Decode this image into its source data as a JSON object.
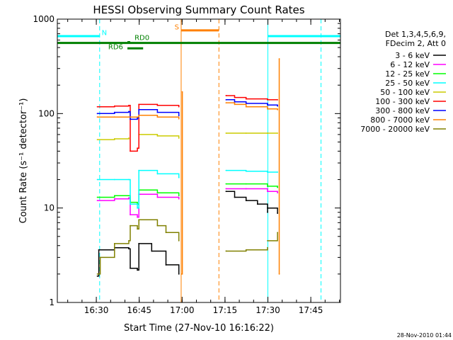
{
  "chart_data": {
    "type": "line",
    "title": "HESSI Observing Summary Count Rates",
    "xlabel": "Start Time (27-Nov-10 16:16:22)",
    "ylabel": "Count Rate (s⁻¹ detector⁻¹)",
    "x_unit": "minutes after 16:16:22",
    "xlim": [
      0,
      99
    ],
    "ylim": [
      1,
      1000
    ],
    "yscale": "log",
    "xtick_labels": [
      {
        "x": 13.63,
        "label": "16:30"
      },
      {
        "x": 28.63,
        "label": "16:45"
      },
      {
        "x": 43.63,
        "label": "17:00"
      },
      {
        "x": 58.63,
        "label": "17:15"
      },
      {
        "x": 73.63,
        "label": "17:30"
      },
      {
        "x": 88.63,
        "label": "17:45"
      }
    ],
    "ytick_labels": [
      {
        "y": 1,
        "label": "1"
      },
      {
        "y": 10,
        "label": "10"
      },
      {
        "y": 100,
        "label": "100"
      },
      {
        "y": 1000,
        "label": "1000"
      }
    ],
    "legend": {
      "placement": "right",
      "header": [
        "Det 1,3,4,5,6,9,",
        "FDecim 2, Att 0"
      ],
      "entries": [
        {
          "label": "3 - 6 keV",
          "color": "#000000"
        },
        {
          "label": "6 - 12 keV",
          "color": "#ff00ff"
        },
        {
          "label": "12 - 25 keV",
          "color": "#00ff00"
        },
        {
          "label": "25 - 50 keV",
          "color": "#00ffff"
        },
        {
          "label": "50 - 100 keV",
          "color": "#cccc00"
        },
        {
          "label": "100 - 300 keV",
          "color": "#ff0000"
        },
        {
          "label": "300 - 800 keV",
          "color": "#0000ff"
        },
        {
          "label": "800 - 7000 keV",
          "color": "#ff8000"
        },
        {
          "label": "7000 - 20000 keV",
          "color": "#808000"
        }
      ]
    },
    "series": [
      {
        "name": "3 - 6 keV",
        "color": "#000000",
        "segments": [
          [
            [
              14.0,
              1.9
            ],
            [
              14.5,
              3.6
            ],
            [
              20.0,
              3.8
            ],
            [
              25.0,
              3.7
            ],
            [
              25.5,
              2.3
            ],
            [
              28.0,
              2.2
            ],
            [
              28.5,
              4.2
            ],
            [
              33.0,
              3.5
            ],
            [
              38.0,
              2.5
            ],
            [
              42.5,
              2.0
            ]
          ],
          [
            [
              59.0,
              15.0
            ],
            [
              62.0,
              13.0
            ],
            [
              66.0,
              12.0
            ],
            [
              70.0,
              11.0
            ],
            [
              73.5,
              9.0
            ]
          ],
          [
            [
              73.5,
              10.0
            ],
            [
              77.0,
              8.8
            ]
          ]
        ]
      },
      {
        "name": "6 - 12 keV",
        "color": "#ff00ff",
        "segments": [
          [
            [
              14.0,
              12.0
            ],
            [
              20.0,
              12.5
            ],
            [
              25.0,
              12.8
            ],
            [
              25.5,
              8.5
            ],
            [
              28.0,
              8.0
            ],
            [
              28.5,
              14.0
            ],
            [
              35.0,
              13.0
            ],
            [
              42.5,
              12.5
            ]
          ],
          [
            [
              59.0,
              16.0
            ],
            [
              66.0,
              16.0
            ],
            [
              73.5,
              15.0
            ]
          ],
          [
            [
              73.5,
              15.0
            ],
            [
              77.0,
              14.5
            ]
          ]
        ]
      },
      {
        "name": "12 - 25 keV",
        "color": "#00ff00",
        "segments": [
          [
            [
              14.0,
              13.0
            ],
            [
              20.0,
              13.5
            ],
            [
              25.0,
              13.5
            ],
            [
              25.5,
              11.5
            ],
            [
              28.0,
              11.0
            ],
            [
              28.5,
              15.5
            ],
            [
              35.0,
              14.5
            ],
            [
              42.5,
              13.5
            ]
          ],
          [
            [
              59.0,
              18.0
            ],
            [
              66.0,
              18.0
            ],
            [
              73.5,
              17.0
            ]
          ],
          [
            [
              73.5,
              17.0
            ],
            [
              77.0,
              16.5
            ]
          ]
        ]
      },
      {
        "name": "25 - 50 keV",
        "color": "#00ffff",
        "segments": [
          [
            [
              14.0,
              20.0
            ],
            [
              20.0,
              20.0
            ],
            [
              25.0,
              20.0
            ],
            [
              25.5,
              11.0
            ],
            [
              28.0,
              10.0
            ],
            [
              28.5,
              25.0
            ],
            [
              35.0,
              23.0
            ],
            [
              42.5,
              21.0
            ]
          ],
          [
            [
              59.0,
              25.0
            ],
            [
              66.0,
              24.5
            ],
            [
              73.5,
              24.0
            ]
          ],
          [
            [
              73.5,
              24.0
            ],
            [
              77.0,
              24.0
            ]
          ]
        ]
      },
      {
        "name": "50 - 100 keV",
        "color": "#cccc00",
        "segments": [
          [
            [
              14.0,
              53.0
            ],
            [
              20.0,
              54.0
            ],
            [
              25.0,
              55.0
            ]
          ],
          [
            [
              28.5,
              60.0
            ],
            [
              35.0,
              58.0
            ],
            [
              42.5,
              55.0
            ]
          ],
          [
            [
              59.0,
              62.0
            ],
            [
              66.0,
              62.0
            ],
            [
              73.5,
              62.0
            ]
          ],
          [
            [
              73.5,
              62.0
            ],
            [
              77.0,
              62.0
            ]
          ]
        ]
      },
      {
        "name": "100 - 300 keV",
        "color": "#ff0000",
        "segments": [
          [
            [
              14.0,
              118.0
            ],
            [
              20.0,
              120.0
            ],
            [
              25.0,
              122.0
            ],
            [
              25.5,
              40.0
            ],
            [
              28.0,
              43.0
            ],
            [
              28.5,
              125.0
            ],
            [
              35.0,
              122.0
            ],
            [
              42.5,
              118.0
            ]
          ],
          [
            [
              59.0,
              155.0
            ],
            [
              62.0,
              148.0
            ],
            [
              66.0,
              143.0
            ],
            [
              73.5,
              140.0
            ]
          ],
          [
            [
              73.5,
              140.0
            ],
            [
              77.0,
              140.0
            ]
          ]
        ]
      },
      {
        "name": "300 - 800 keV",
        "color": "#0000ff",
        "segments": [
          [
            [
              14.0,
              100.0
            ],
            [
              20.0,
              103.0
            ],
            [
              25.0,
              105.0
            ],
            [
              25.5,
              87.0
            ],
            [
              28.0,
              90.0
            ],
            [
              28.5,
              110.0
            ],
            [
              35.0,
              103.0
            ],
            [
              42.5,
              95.0
            ]
          ],
          [
            [
              59.0,
              140.0
            ],
            [
              62.0,
              133.0
            ],
            [
              66.0,
              128.0
            ],
            [
              73.5,
              125.0
            ]
          ],
          [
            [
              73.5,
              123.0
            ],
            [
              77.0,
              120.0
            ]
          ]
        ]
      },
      {
        "name": "800 - 7000 keV",
        "color": "#ff8000",
        "segments": [
          [
            [
              14.0,
              92.0
            ],
            [
              20.0,
              92.0
            ],
            [
              25.0,
              92.0
            ],
            [
              28.5,
              96.0
            ],
            [
              35.0,
              92.0
            ],
            [
              42.5,
              88.0
            ]
          ],
          [
            [
              43.5,
              2.0
            ],
            [
              43.7,
              170.0
            ]
          ],
          [
            [
              59.0,
              130.0
            ],
            [
              62.0,
              125.0
            ],
            [
              66.0,
              118.0
            ],
            [
              73.5,
              112.0
            ]
          ],
          [
            [
              73.5,
              112.0
            ],
            [
              77.0,
              110.0
            ]
          ],
          [
            [
              77.6,
              2.0
            ],
            [
              77.6,
              380.0
            ]
          ]
        ]
      },
      {
        "name": "7000 - 20000 keV",
        "color": "#808000",
        "segments": [
          [
            [
              14.0,
              2.0
            ],
            [
              15.0,
              3.0
            ],
            [
              20.0,
              4.2
            ],
            [
              25.0,
              4.5
            ],
            [
              25.5,
              6.5
            ],
            [
              28.0,
              6.0
            ],
            [
              28.5,
              7.5
            ],
            [
              35.0,
              6.5
            ],
            [
              38.0,
              5.5
            ],
            [
              42.5,
              4.5
            ]
          ],
          [
            [
              59.0,
              3.5
            ],
            [
              66.0,
              3.6
            ],
            [
              73.5,
              3.8
            ]
          ],
          [
            [
              73.5,
              4.5
            ],
            [
              77.0,
              5.5
            ]
          ]
        ]
      }
    ],
    "vlines": [
      {
        "x": 0.0,
        "color": "#00ffff",
        "style": "solid"
      },
      {
        "x": 14.8,
        "color": "#00ffff",
        "style": "dashed"
      },
      {
        "x": 43.3,
        "color": "#ff8000",
        "style": "solid"
      },
      {
        "x": 56.5,
        "color": "#ff8000",
        "style": "dashed"
      },
      {
        "x": 73.6,
        "color": "#00ffff",
        "style": "solid"
      },
      {
        "x": 92.2,
        "color": "#00ffff",
        "style": "dashed"
      }
    ],
    "flag_bars": [
      {
        "label": "N",
        "color": "#00ffff",
        "y": 660,
        "x_ranges": [
          [
            0.0,
            14.8
          ],
          [
            73.6,
            99.0
          ]
        ],
        "label_x": 15.5,
        "label_y": 680
      },
      {
        "label": "S",
        "color": "#ff8000",
        "y": 760,
        "x_ranges": [
          [
            43.3,
            56.5
          ]
        ],
        "label_x": 41.0,
        "label_y": 780
      },
      {
        "label": "",
        "color": "#008000",
        "y": 560,
        "x_ranges": [
          [
            0.0,
            99.0
          ]
        ],
        "label_x": null,
        "label_y": null
      },
      {
        "label": "RD6",
        "color": "#008000",
        "y": 490,
        "x_ranges": [
          [
            24.5,
            30.0
          ]
        ],
        "label_x": 17.8,
        "label_y": 480
      },
      {
        "label": "RD0",
        "color": "#008000",
        "y": 570,
        "x_ranges": [
          [
            24.5,
            25.5
          ]
        ],
        "label_x": 27.0,
        "label_y": 600
      }
    ]
  },
  "timestamp": "28-Nov-2010 01:44"
}
